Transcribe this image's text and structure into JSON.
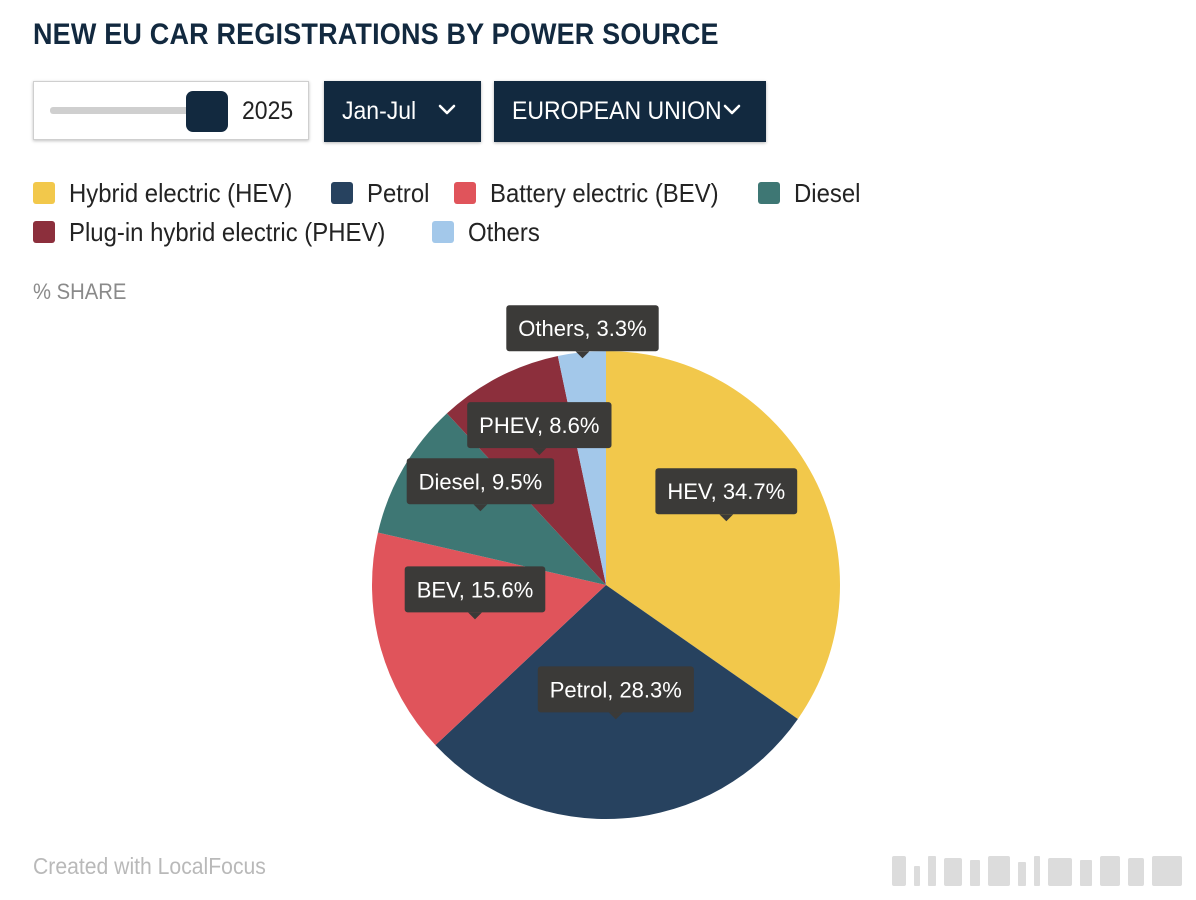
{
  "title": "NEW EU CAR REGISTRATIONS BY POWER SOURCE",
  "controls": {
    "year": "2025",
    "period": "Jan-Jul",
    "region": "EUROPEAN UNION"
  },
  "share_label": "% SHARE",
  "footer": "Created with LocalFocus",
  "colors": {
    "hev": "#f2c84b",
    "petrol": "#27425f",
    "bev": "#e0545b",
    "diesel": "#3e7774",
    "phev": "#8c2f3c",
    "others": "#a3c8ea",
    "tooltip_bg": "#3b3a38",
    "control_bg": "#12293f"
  },
  "legend": [
    {
      "key": "hev",
      "label": "Hybrid electric (HEV)"
    },
    {
      "key": "petrol",
      "label": "Petrol"
    },
    {
      "key": "bev",
      "label": "Battery electric (BEV)"
    },
    {
      "key": "diesel",
      "label": "Diesel"
    },
    {
      "key": "phev",
      "label": "Plug-in hybrid electric (PHEV)"
    },
    {
      "key": "others",
      "label": "Others"
    }
  ],
  "chart_data": {
    "type": "pie",
    "ylabel": "% SHARE",
    "unit": "%",
    "slices": [
      {
        "key": "hev",
        "name": "Hybrid electric (HEV)",
        "value": 34.7,
        "data_label": "HEV, 34.7%"
      },
      {
        "key": "petrol",
        "name": "Petrol",
        "value": 28.3,
        "data_label": "Petrol, 28.3%"
      },
      {
        "key": "bev",
        "name": "Battery electric (BEV)",
        "value": 15.6,
        "data_label": "BEV, 15.6%"
      },
      {
        "key": "diesel",
        "name": "Diesel",
        "value": 9.5,
        "data_label": "Diesel, 9.5%"
      },
      {
        "key": "phev",
        "name": "Plug-in hybrid electric (PHEV)",
        "value": 8.6,
        "data_label": "PHEV, 8.6%"
      },
      {
        "key": "others",
        "name": "Others",
        "value": 3.3,
        "data_label": "Others, 3.3%"
      }
    ],
    "legend_position": "top"
  }
}
